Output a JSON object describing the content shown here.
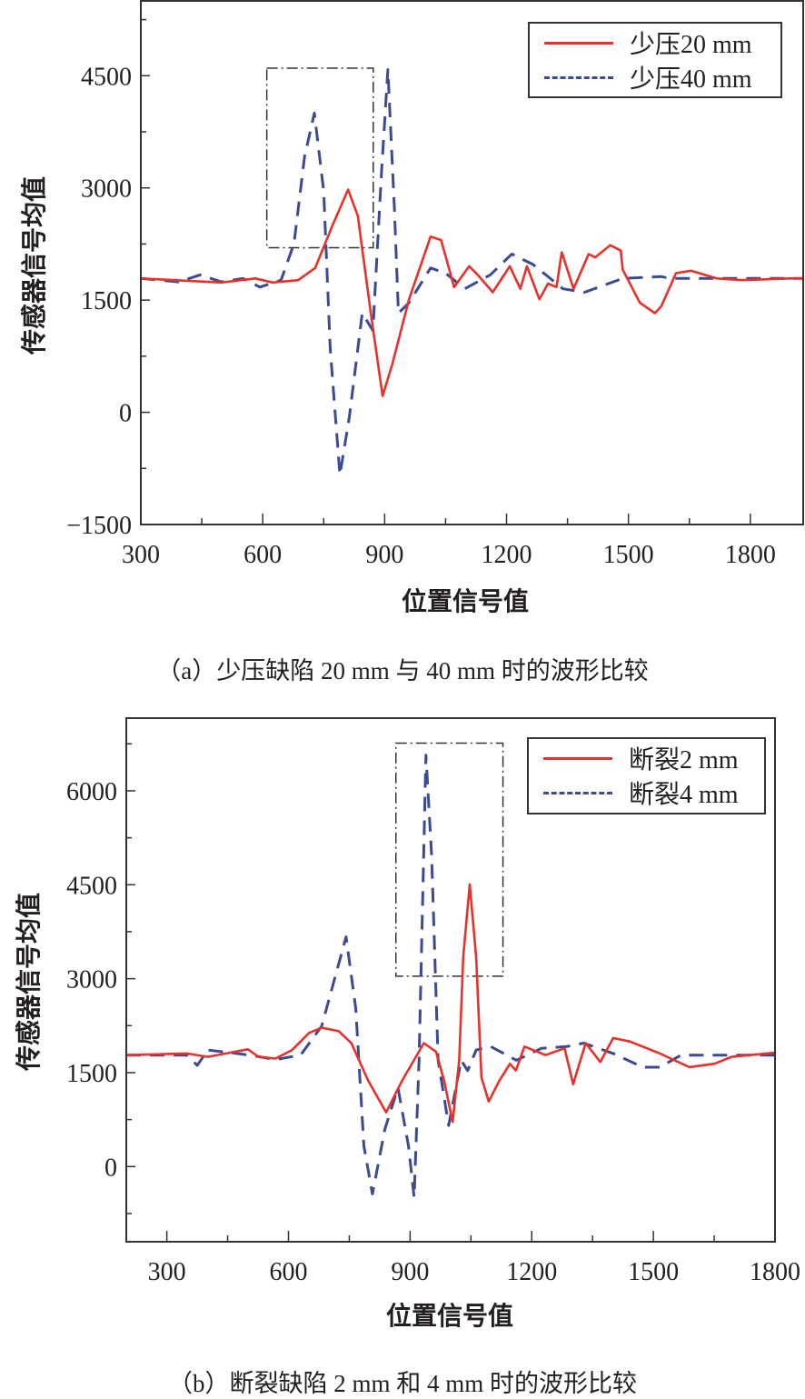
{
  "colors": {
    "solid_series": "#e8312a",
    "dashed_series": "#3a4a93",
    "axis": "#333333",
    "highlight_box": "#333333"
  },
  "chart_data": [
    {
      "type": "line",
      "caption": "（a）少压缺陷 20 mm 与 40 mm 时的波形比较",
      "xlabel": "位置信号值",
      "ylabel": "传感器信号均值",
      "xlim": [
        300,
        1930
      ],
      "ylim": [
        -1500,
        5500
      ],
      "xticks": [
        300,
        600,
        900,
        1200,
        1500,
        1800
      ],
      "yticks": [
        -1500,
        0,
        1500,
        3000,
        4500
      ],
      "xtick_labels": [
        "300",
        "600",
        "900",
        "1200",
        "1500",
        "1800"
      ],
      "ytick_labels": [
        "−1500",
        "0",
        "1500",
        "3000",
        "4500"
      ],
      "grid": false,
      "legend_position": "top-right",
      "highlight_box": {
        "x": [
          610,
          872
        ],
        "y": [
          2200,
          4600
        ]
      },
      "series": [
        {
          "name": "少压20 mm",
          "style": "solid",
          "x": [
            300,
            498,
            582,
            624,
            687,
            729,
            771,
            810,
            834,
            866,
            895,
            918,
            960,
            1013,
            1039,
            1071,
            1108,
            1129,
            1166,
            1208,
            1234,
            1250,
            1281,
            1302,
            1323,
            1336,
            1365,
            1402,
            1418,
            1455,
            1481,
            1486,
            1528,
            1565,
            1581,
            1617,
            1654,
            1717,
            1780,
            1896,
            1930
          ],
          "y": [
            1790,
            1735,
            1790,
            1735,
            1767,
            1930,
            2488,
            2977,
            2628,
            1326,
            219,
            628,
            1512,
            2349,
            2302,
            1674,
            1953,
            1837,
            1605,
            1953,
            1651,
            1953,
            1512,
            1721,
            1674,
            2140,
            1651,
            2116,
            2070,
            2233,
            2163,
            1907,
            1465,
            1326,
            1419,
            1860,
            1893,
            1790,
            1767,
            1790,
            1790
          ]
        },
        {
          "name": "少压40 mm",
          "style": "dashed",
          "x": [
            300,
            393,
            446,
            498,
            551,
            593,
            645,
            677,
            703,
            727,
            750,
            766,
            790,
            813,
            845,
            871,
            892,
            908,
            924,
            934,
            960,
            1013,
            1050,
            1097,
            1160,
            1213,
            1265,
            1339,
            1392,
            1486,
            1581,
            1602,
            1896,
            1930
          ],
          "y": [
            1790,
            1744,
            1837,
            1744,
            1790,
            1674,
            1767,
            2256,
            3418,
            4000,
            2953,
            860,
            -837,
            -70,
            1326,
            1093,
            3186,
            4581,
            2721,
            1326,
            1465,
            1930,
            1860,
            1651,
            1837,
            2116,
            1977,
            1651,
            1605,
            1790,
            1814,
            1790,
            1790,
            1790
          ]
        }
      ]
    },
    {
      "type": "line",
      "caption": "（b）断裂缺陷 2 mm 和 4 mm 时的波形比较",
      "xlabel": "位置信号值",
      "ylabel": "传感器信号均值",
      "xlim": [
        200,
        1800
      ],
      "ylim": [
        -1200,
        7160
      ],
      "xticks": [
        300,
        600,
        900,
        1200,
        1500,
        1800
      ],
      "yticks": [
        0,
        1500,
        3000,
        4500,
        6000
      ],
      "xtick_labels": [
        "300",
        "600",
        "900",
        "1200",
        "1500",
        "1800"
      ],
      "ytick_labels": [
        "0",
        "1500",
        "3000",
        "4500",
        "6000"
      ],
      "grid": false,
      "legend_position": "top-right",
      "highlight_box": {
        "x": [
          865,
          1129
        ],
        "y": [
          3040,
          6760
        ]
      },
      "series": [
        {
          "name": "断裂2 mm",
          "style": "solid",
          "x": [
            200,
            349,
            401,
            500,
            526,
            568,
            609,
            651,
            682,
            724,
            755,
            797,
            841,
            880,
            934,
            964,
            984,
            1005,
            1021,
            1031,
            1047,
            1063,
            1076,
            1094,
            1120,
            1146,
            1161,
            1182,
            1234,
            1281,
            1302,
            1333,
            1369,
            1401,
            1442,
            1516,
            1589,
            1651,
            1693,
            1800
          ],
          "y": [
            1779,
            1806,
            1752,
            1872,
            1752,
            1724,
            1861,
            2135,
            2217,
            2162,
            1971,
            1368,
            865,
            1368,
            1971,
            1834,
            1368,
            712,
            1697,
            3339,
            4505,
            3339,
            1423,
            1040,
            1368,
            1642,
            1533,
            1916,
            1779,
            1889,
            1314,
            1971,
            1670,
            2053,
            1998,
            1806,
            1587,
            1642,
            1752,
            1817
          ]
        },
        {
          "name": "断裂4 mm",
          "style": "dashed",
          "x": [
            200,
            349,
            375,
            401,
            505,
            568,
            630,
            682,
            742,
            766,
            786,
            807,
            838,
            870,
            896,
            910,
            922,
            939,
            953,
            969,
            995,
            1026,
            1042,
            1063,
            1099,
            1162,
            1224,
            1286,
            1328,
            1401,
            1474,
            1516,
            1568,
            1800
          ],
          "y": [
            1779,
            1779,
            1615,
            1861,
            1779,
            1708,
            1779,
            2244,
            3668,
            2518,
            328,
            -438,
            602,
            1259,
            328,
            -493,
            1697,
            6569,
            4981,
            1697,
            657,
            1697,
            1533,
            1861,
            1916,
            1697,
            1889,
            1916,
            1971,
            1806,
            1587,
            1587,
            1779,
            1779
          ]
        }
      ]
    }
  ]
}
